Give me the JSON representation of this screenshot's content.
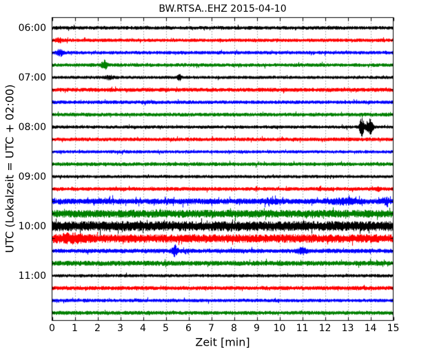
{
  "chart_data": {
    "type": "line",
    "subtype": "seismogram-dayplot",
    "title": "BW.RTSA..EHZ 2015-04-10",
    "xlabel": "Zeit  [min]",
    "ylabel": "UTC (Lokalzeit = UTC + 02:00)",
    "xlim": [
      0,
      15
    ],
    "minutes_per_row": 15,
    "grid": {
      "vertical": true,
      "horizontal": false,
      "style": "dotted"
    },
    "x_ticks": [
      "0",
      "1",
      "2",
      "3",
      "4",
      "5",
      "6",
      "7",
      "8",
      "9",
      "10",
      "11",
      "12",
      "13",
      "14",
      "15"
    ],
    "y_ticks": [
      {
        "label": "06:00",
        "row": 0
      },
      {
        "label": "07:00",
        "row": 4
      },
      {
        "label": "08:00",
        "row": 8
      },
      {
        "label": "09:00",
        "row": 12
      },
      {
        "label": "10:00",
        "row": 16
      },
      {
        "label": "11:00",
        "row": 20
      }
    ],
    "trace_colors_cycle": [
      "#000000",
      "#ff0000",
      "#0000ff",
      "#008000"
    ],
    "rows": [
      {
        "time": "06:00",
        "color": "#000000",
        "amp": 1.15,
        "events": []
      },
      {
        "time": "06:15",
        "color": "#ff0000",
        "amp": 1.1,
        "events": [
          {
            "t": 0.3,
            "a": 1.0,
            "w": 0.15
          }
        ]
      },
      {
        "time": "06:30",
        "color": "#0000ff",
        "amp": 1.1,
        "events": [
          {
            "t": 0.35,
            "a": 1.6,
            "w": 0.15
          }
        ]
      },
      {
        "time": "06:45",
        "color": "#008000",
        "amp": 1.15,
        "events": [
          {
            "t": 2.3,
            "a": 2.4,
            "w": 0.12
          }
        ]
      },
      {
        "time": "07:00",
        "color": "#000000",
        "amp": 1.0,
        "events": [
          {
            "t": 2.5,
            "a": 0.9,
            "w": 0.2
          },
          {
            "t": 5.6,
            "a": 1.6,
            "w": 0.08
          }
        ]
      },
      {
        "time": "07:15",
        "color": "#ff0000",
        "amp": 1.3,
        "events": []
      },
      {
        "time": "07:30",
        "color": "#0000ff",
        "amp": 1.15,
        "events": []
      },
      {
        "time": "07:45",
        "color": "#008000",
        "amp": 1.2,
        "events": []
      },
      {
        "time": "08:00",
        "color": "#000000",
        "amp": 1.05,
        "events": [
          {
            "t": 13.62,
            "a": 5.3,
            "w": 0.1
          },
          {
            "t": 13.97,
            "a": 4.6,
            "w": 0.14
          }
        ]
      },
      {
        "time": "08:15",
        "color": "#ff0000",
        "amp": 1.2,
        "events": []
      },
      {
        "time": "08:30",
        "color": "#0000ff",
        "amp": 1.0,
        "events": []
      },
      {
        "time": "08:45",
        "color": "#008000",
        "amp": 1.2,
        "events": []
      },
      {
        "time": "09:00",
        "color": "#000000",
        "amp": 1.0,
        "events": []
      },
      {
        "time": "09:15",
        "color": "#ff0000",
        "amp": 1.2,
        "events": [
          {
            "t": 9.0,
            "a": 0.9,
            "w": 0.06
          },
          {
            "t": 11.8,
            "a": 1.1,
            "w": 0.06
          },
          {
            "t": 14.35,
            "a": 1.2,
            "w": 0.07
          }
        ]
      },
      {
        "time": "09:30",
        "color": "#0000ff",
        "amp": 1.8,
        "spiky": true,
        "events": [
          {
            "t": 9.6,
            "a": 1.0,
            "w": 0.3
          },
          {
            "t": 12.9,
            "a": 1.2,
            "w": 0.5
          },
          {
            "t": 14.7,
            "a": 1.3,
            "w": 0.12
          }
        ]
      },
      {
        "time": "09:45",
        "color": "#008000",
        "amp": 2.5,
        "events": []
      },
      {
        "time": "10:00",
        "color": "#000000",
        "amp": 3.2,
        "events": []
      },
      {
        "time": "10:15",
        "color": "#ff0000",
        "amp": 2.7,
        "events": [
          {
            "t": 0.8,
            "a": 1.2,
            "w": 0.6
          }
        ]
      },
      {
        "time": "10:30",
        "color": "#0000ff",
        "amp": 1.4,
        "events": [
          {
            "t": 5.4,
            "a": 3.0,
            "w": 0.12
          },
          {
            "t": 11.0,
            "a": 1.6,
            "w": 0.18
          }
        ]
      },
      {
        "time": "10:45",
        "color": "#008000",
        "amp": 1.6,
        "events": []
      },
      {
        "time": "11:00",
        "color": "#000000",
        "amp": 1.05,
        "events": []
      },
      {
        "time": "11:15",
        "color": "#ff0000",
        "amp": 1.3,
        "events": []
      },
      {
        "time": "11:30",
        "color": "#0000ff",
        "amp": 1.1,
        "events": []
      },
      {
        "time": "11:45",
        "color": "#008000",
        "amp": 1.25,
        "events": []
      }
    ]
  }
}
